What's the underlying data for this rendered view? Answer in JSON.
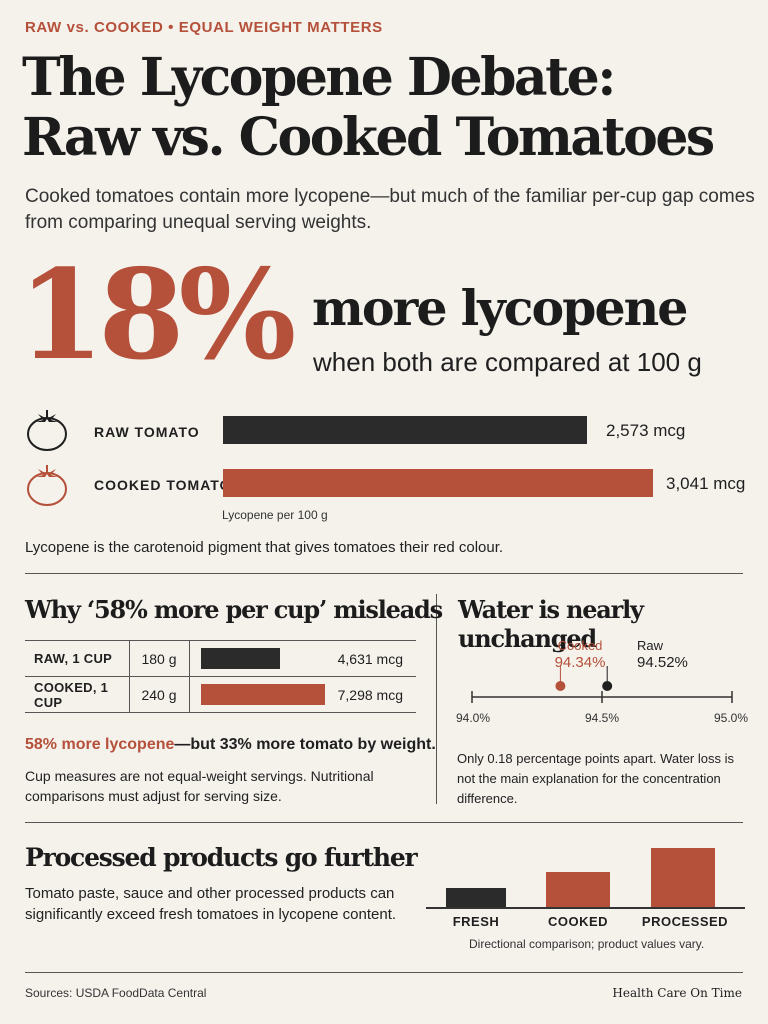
{
  "header": {
    "kicker": "RAW vs. COOKED • EQUAL WEIGHT MATTERS",
    "title_line1": "The Lycopene Debate:",
    "title_line2": "Raw vs. Cooked Tomatoes",
    "subtitle": "Cooked tomatoes contain more lycopene—but much of the familiar per-cup gap comes from comparing unequal serving weights."
  },
  "hero": {
    "big_number": "18%",
    "headline": "more lycopene",
    "subline": "when both are compared at 100 g"
  },
  "per100g": {
    "rows": [
      {
        "label": "RAW TOMATO",
        "value_text": "2,573 mcg",
        "value": 2573,
        "icon": "tomato-outline-icon"
      },
      {
        "label": "COOKED TOMATO",
        "value_text": "3,041 mcg",
        "value": 3041,
        "icon": "tomato-outline-red-icon"
      }
    ],
    "axis_note": "Lycopene per 100 g",
    "footnote": "Lycopene is the carotenoid pigment that gives tomatoes their red colour."
  },
  "cup_section": {
    "heading": "Why ‘58% more per cup’ misleads",
    "rows": [
      {
        "label": "RAW, 1 CUP",
        "weight": "180 g",
        "value_text": "4,631 mcg",
        "value": 4631
      },
      {
        "label": "COOKED, 1 CUP",
        "weight": "240 g",
        "value_text": "7,298 mcg",
        "value": 7298
      }
    ],
    "callout_red": "58% more lycopene",
    "callout_rest": "—but 33% more tomato by weight.",
    "note": "Cup measures are not equal-weight servings. Nutritional comparisons must adjust for serving size."
  },
  "water_section": {
    "heading": "Water is nearly unchanged",
    "cooked_label": "Cooked",
    "cooked_value": "94.34%",
    "cooked_num": 94.34,
    "raw_label": "Raw",
    "raw_value": "94.52%",
    "raw_num": 94.52,
    "axis_min": 94.0,
    "axis_max": 95.0,
    "ticks": [
      "94.0%",
      "94.5%",
      "95.0%"
    ],
    "note": "Only 0.18 percentage points apart. Water loss is not the main explanation for the concentration difference."
  },
  "processed_section": {
    "heading": "Processed products go further",
    "body": "Tomato paste, sauce and other processed products can significantly exceed fresh tomatoes in lycopene content.",
    "chart_note": "Directional comparison; product values vary."
  },
  "chart_data": {
    "type": "bar",
    "categories": [
      "FRESH",
      "COOKED",
      "PROCESSED"
    ],
    "values": [
      1,
      1.8,
      3
    ],
    "title": "",
    "xlabel": "",
    "ylabel": ""
  },
  "footer": {
    "sources": "Sources: USDA FoodData Central",
    "brand": "Health Care On Time"
  },
  "colors": {
    "accent": "#b5503a",
    "dark": "#2b2b2b",
    "background": "#f5f2ec"
  }
}
